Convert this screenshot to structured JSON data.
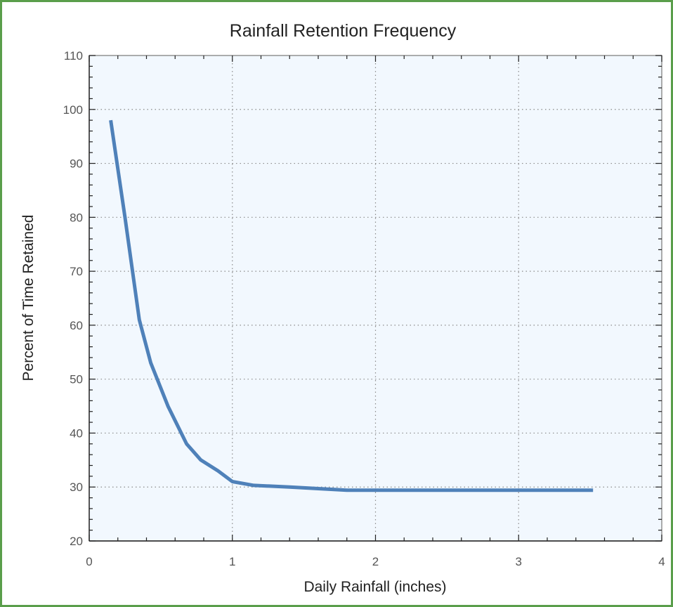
{
  "chart_data": {
    "type": "line",
    "title": "Rainfall Retention Frequency",
    "xlabel": "Daily Rainfall (inches)",
    "ylabel": "Percent of Time Retained",
    "xlim": [
      0,
      4
    ],
    "ylim": [
      20,
      110
    ],
    "x_ticks": [
      0,
      1,
      2,
      3,
      4
    ],
    "y_ticks": [
      20,
      30,
      40,
      50,
      60,
      70,
      80,
      90,
      100,
      110
    ],
    "grid": true,
    "colors": {
      "line": "#4f81b9",
      "background": "#f2f8fe",
      "frame": "#5a9e4b"
    },
    "series": [
      {
        "x": [
          0.15,
          0.25,
          0.35,
          0.43,
          0.55,
          0.68,
          0.78,
          0.9,
          1.0,
          1.15,
          1.4,
          1.8,
          2.5,
          3.0,
          3.52
        ],
        "y": [
          98,
          80,
          61,
          53,
          45,
          38,
          35,
          33,
          31,
          30.3,
          30,
          29.4,
          29.4,
          29.4,
          29.4
        ]
      }
    ]
  }
}
